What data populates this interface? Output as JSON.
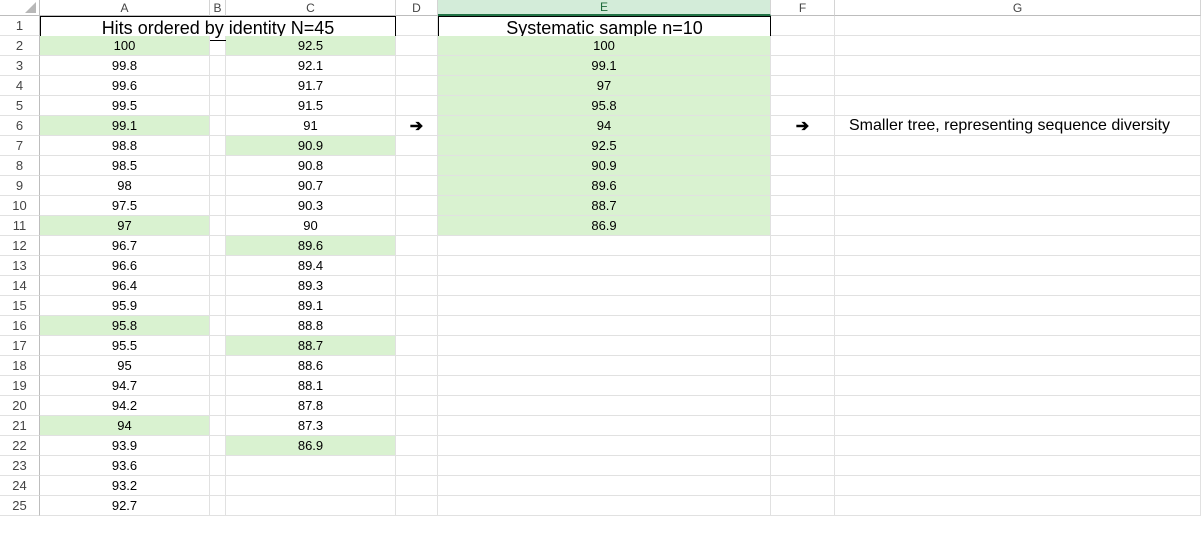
{
  "columns": [
    "A",
    "B",
    "C",
    "D",
    "E",
    "F",
    "G"
  ],
  "selected_column": "E",
  "row_numbers": [
    1,
    2,
    3,
    4,
    5,
    6,
    7,
    8,
    9,
    10,
    11,
    12,
    13,
    14,
    15,
    16,
    17,
    18,
    19,
    20,
    21,
    22,
    23,
    24,
    25
  ],
  "title_left": "Hits ordered by identity N=45",
  "title_right": "Systematic sample n=10",
  "col_a": [
    "100",
    "99.8",
    "99.6",
    "99.5",
    "99.1",
    "98.8",
    "98.5",
    "98",
    "97.5",
    "97",
    "96.7",
    "96.6",
    "96.4",
    "95.9",
    "95.8",
    "95.5",
    "95",
    "94.7",
    "94.2",
    "94",
    "93.9",
    "93.6",
    "93.2",
    "92.7"
  ],
  "col_c": [
    "92.5",
    "92.1",
    "91.7",
    "91.5",
    "91",
    "90.9",
    "90.8",
    "90.7",
    "90.3",
    "90",
    "89.6",
    "89.4",
    "89.3",
    "89.1",
    "88.8",
    "88.7",
    "88.6",
    "88.1",
    "87.8",
    "87.3",
    "86.9"
  ],
  "col_e": [
    "100",
    "99.1",
    "97",
    "95.8",
    "94",
    "92.5",
    "90.9",
    "89.6",
    "88.7",
    "86.9"
  ],
  "highlight_a_rows": [
    2,
    6,
    11,
    16,
    21
  ],
  "highlight_c_rows": [
    2,
    7,
    12,
    17,
    22
  ],
  "arrow_d": "➔",
  "arrow_f": "➔",
  "note_g": "Smaller tree, representing sequence diversity",
  "colors": {
    "highlight": "#d9f2d0",
    "selected_header": "#d3ecd9",
    "gridline": "#e1e1e1"
  }
}
